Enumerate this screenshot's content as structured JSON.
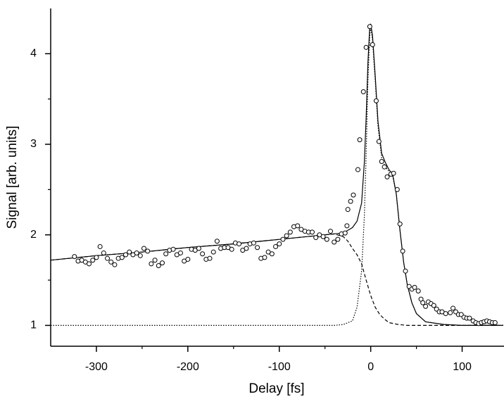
{
  "chart_data": {
    "type": "scatter",
    "xlabel": "Delay [fs]",
    "ylabel": "Signal [arb. units]",
    "xlim": [
      -350,
      145
    ],
    "ylim": [
      0.77,
      4.5
    ],
    "xticks": [
      -300,
      -200,
      -100,
      0,
      100
    ],
    "yticks": [
      1,
      2,
      3,
      4
    ],
    "xminorticks": [
      -250,
      -150,
      -50,
      50
    ],
    "yminorticks": [
      1.5,
      2.5,
      3.5
    ],
    "series": [
      {
        "type": "scatter",
        "color": "#000000",
        "x": [
          -324,
          -320,
          -316,
          -312,
          -308,
          -304,
          -300,
          -296,
          -292,
          -288,
          -284,
          -280,
          -276,
          -272,
          -268,
          -264,
          -260,
          -256,
          -252,
          -248,
          -244,
          -240,
          -236,
          -232,
          -228,
          -224,
          -220,
          -216,
          -212,
          -208,
          -204,
          -200,
          -196,
          -192,
          -188,
          -184,
          -180,
          -176,
          -172,
          -168,
          -164,
          -160,
          -156,
          -152,
          -148,
          -144,
          -140,
          -136,
          -132,
          -128,
          -124,
          -120,
          -116,
          -112,
          -108,
          -104,
          -100,
          -96,
          -92,
          -88,
          -84,
          -80,
          -76,
          -72,
          -68,
          -64,
          -60,
          -56,
          -52,
          -48,
          -44,
          -40,
          -36,
          -32,
          -28,
          -26,
          -25,
          -22,
          -19,
          -14,
          -12,
          -8,
          -5,
          -1,
          2,
          6,
          9,
          12,
          15,
          18,
          22,
          25,
          29,
          32,
          35,
          38,
          42,
          45,
          48,
          52,
          55,
          57,
          60,
          63,
          66,
          69,
          72,
          75,
          78,
          82,
          87,
          90,
          93,
          96,
          99,
          102,
          105,
          108,
          112,
          115,
          118,
          121,
          124,
          127,
          130,
          133,
          136
        ],
        "values": [
          1.76,
          1.71,
          1.72,
          1.7,
          1.68,
          1.72,
          1.75,
          1.87,
          1.8,
          1.74,
          1.7,
          1.67,
          1.74,
          1.75,
          1.78,
          1.81,
          1.78,
          1.8,
          1.77,
          1.85,
          1.82,
          1.68,
          1.72,
          1.66,
          1.69,
          1.79,
          1.83,
          1.84,
          1.78,
          1.8,
          1.71,
          1.73,
          1.84,
          1.83,
          1.85,
          1.79,
          1.73,
          1.74,
          1.81,
          1.93,
          1.85,
          1.86,
          1.86,
          1.84,
          1.91,
          1.9,
          1.83,
          1.85,
          1.9,
          1.91,
          1.86,
          1.74,
          1.75,
          1.81,
          1.79,
          1.87,
          1.9,
          1.95,
          1.99,
          2.03,
          2.09,
          2.1,
          2.06,
          2.04,
          2.03,
          2.03,
          1.97,
          2.0,
          1.98,
          1.95,
          2.04,
          1.92,
          1.95,
          2.01,
          2.02,
          2.1,
          2.28,
          2.37,
          2.44,
          2.72,
          3.05,
          3.58,
          4.07,
          4.3,
          4.1,
          3.48,
          3.03,
          2.81,
          2.75,
          2.64,
          2.67,
          2.68,
          2.5,
          2.12,
          1.82,
          1.6,
          1.43,
          1.4,
          1.42,
          1.38,
          1.29,
          1.25,
          1.21,
          1.26,
          1.24,
          1.22,
          1.18,
          1.15,
          1.15,
          1.13,
          1.14,
          1.19,
          1.15,
          1.12,
          1.12,
          1.09,
          1.08,
          1.08,
          1.05,
          1.03,
          1.02,
          1.03,
          1.04,
          1.05,
          1.04,
          1.03,
          1.03
        ]
      },
      {
        "type": "line",
        "dash": "solid",
        "color": "#000000",
        "x": [
          -350,
          -300,
          -250,
          -200,
          -150,
          -100,
          -50,
          -30,
          -20,
          -15,
          -10,
          -7,
          -5,
          -3,
          -1,
          0,
          2,
          5,
          8,
          12,
          16,
          20,
          24,
          28,
          32,
          36,
          40,
          45,
          50,
          60,
          80,
          100,
          145
        ],
        "values": [
          1.72,
          1.77,
          1.81,
          1.86,
          1.9,
          1.95,
          2.0,
          2.02,
          2.08,
          2.15,
          2.35,
          2.8,
          3.3,
          3.9,
          4.3,
          4.33,
          4.2,
          3.75,
          3.25,
          2.9,
          2.8,
          2.72,
          2.67,
          2.45,
          2.05,
          1.7,
          1.45,
          1.25,
          1.13,
          1.04,
          1.01,
          1.0,
          1.0
        ]
      },
      {
        "type": "line",
        "dash": "dashed",
        "color": "#000000",
        "x": [
          -350,
          -300,
          -250,
          -200,
          -150,
          -100,
          -50,
          -40,
          -30,
          -25,
          -20,
          -15,
          -10,
          -5,
          0,
          5,
          10,
          15,
          20,
          30,
          40,
          60,
          100,
          145
        ],
        "values": [
          1.72,
          1.77,
          1.81,
          1.86,
          1.9,
          1.95,
          2.0,
          2.01,
          1.98,
          1.93,
          1.85,
          1.78,
          1.68,
          1.5,
          1.33,
          1.2,
          1.12,
          1.07,
          1.03,
          1.01,
          1.0,
          1.0,
          1.0,
          1.0
        ]
      },
      {
        "type": "line",
        "dash": "dotted",
        "color": "#000000",
        "x": [
          -350,
          -40,
          -30,
          -20,
          -15,
          -10,
          -7,
          -5,
          -3,
          -1,
          0,
          2,
          5,
          8,
          12,
          16,
          20,
          24,
          28,
          32,
          36,
          40,
          45,
          50,
          60,
          80,
          100,
          145
        ],
        "values": [
          1.0,
          1.0,
          1.01,
          1.05,
          1.2,
          1.6,
          2.2,
          2.9,
          3.7,
          4.2,
          4.3,
          4.15,
          3.7,
          3.2,
          2.85,
          2.75,
          2.7,
          2.65,
          2.45,
          2.05,
          1.7,
          1.45,
          1.25,
          1.13,
          1.04,
          1.01,
          1.0,
          1.0
        ]
      }
    ]
  }
}
